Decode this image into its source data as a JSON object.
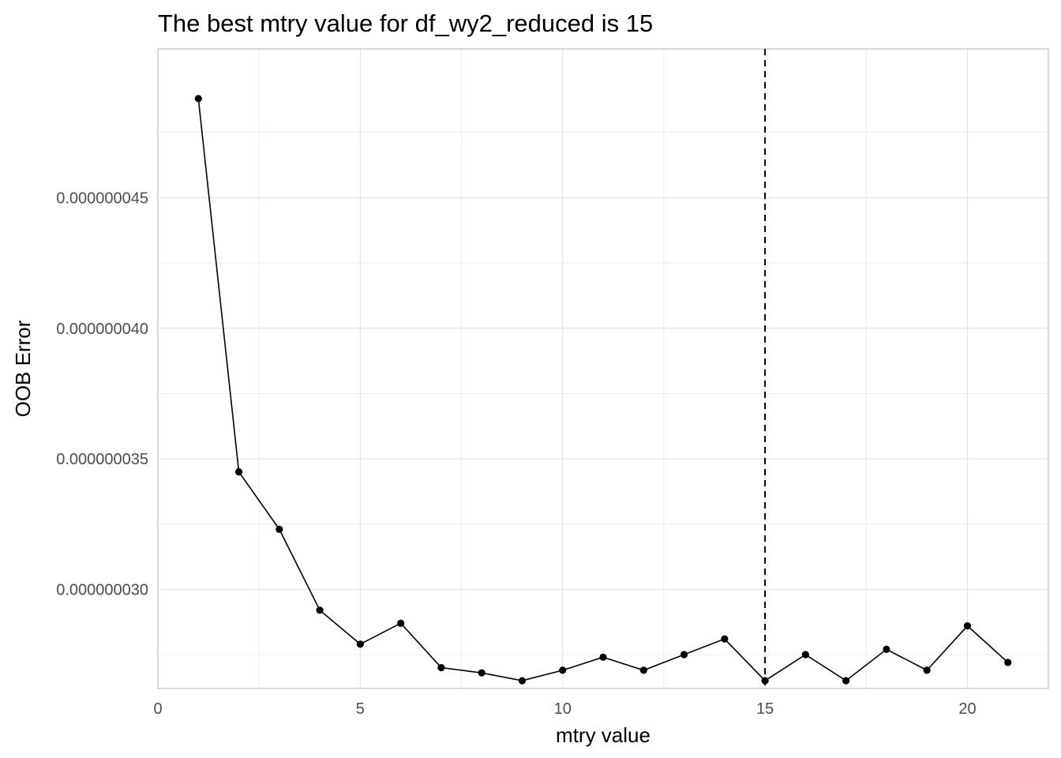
{
  "chart_data": {
    "type": "line",
    "title": "The best mtry value for df_wy2_reduced is 15",
    "xlabel": "mtry value",
    "ylabel": "OOB Error",
    "xlim": [
      0,
      22
    ],
    "ylim": [
      2.62e-08,
      5.07e-08
    ],
    "x_ticks": [
      0,
      5,
      10,
      15,
      20
    ],
    "x_tick_labels": [
      "0",
      "5",
      "10",
      "15",
      "20"
    ],
    "y_ticks": [
      3e-08,
      3.5e-08,
      4e-08,
      4.5e-08
    ],
    "y_tick_labels": [
      "0.000000030",
      "0.000000035",
      "0.000000040",
      "0.000000045"
    ],
    "grid": true,
    "reference_line": {
      "x": 15,
      "style": "dashed"
    },
    "series": [
      {
        "x": [
          1,
          2,
          3,
          4,
          5,
          6,
          7,
          8,
          9,
          10,
          11,
          12,
          13,
          14,
          15,
          16,
          17,
          18,
          19,
          20,
          21
        ],
        "values": [
          4.88e-08,
          3.45e-08,
          3.23e-08,
          2.92e-08,
          2.79e-08,
          2.87e-08,
          2.7e-08,
          2.68e-08,
          2.65e-08,
          2.69e-08,
          2.74e-08,
          2.69e-08,
          2.75e-08,
          2.81e-08,
          2.65e-08,
          2.75e-08,
          2.65e-08,
          2.77e-08,
          2.69e-08,
          2.86e-08,
          2.72e-08
        ]
      }
    ]
  }
}
